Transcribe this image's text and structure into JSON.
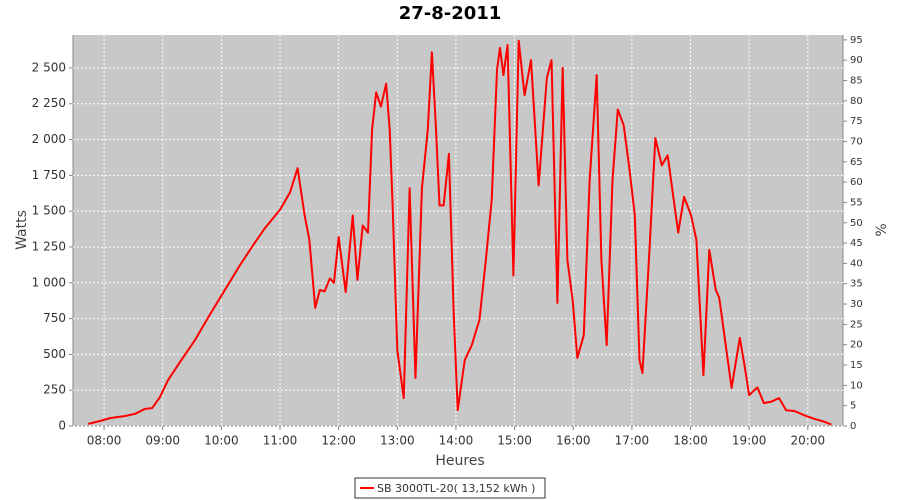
{
  "chart_data": {
    "type": "line",
    "title": "27-8-2011",
    "x_label": "Heures",
    "y_label": "Watts",
    "y2_label": "%",
    "x": [
      7.73,
      7.93,
      8.1,
      8.36,
      8.53,
      8.7,
      8.82,
      8.95,
      9.09,
      9.3,
      9.55,
      9.8,
      10.06,
      10.32,
      10.57,
      10.74,
      11.0,
      11.17,
      11.3,
      11.42,
      11.5,
      11.6,
      11.68,
      11.76,
      11.85,
      11.92,
      12.0,
      12.12,
      12.24,
      12.32,
      12.41,
      12.5,
      12.57,
      12.64,
      12.72,
      12.81,
      12.87,
      12.92,
      13.0,
      13.11,
      13.21,
      13.31,
      13.42,
      13.52,
      13.59,
      13.66,
      13.72,
      13.79,
      13.88,
      13.96,
      14.03,
      14.15,
      14.27,
      14.4,
      14.51,
      14.61,
      14.7,
      14.75,
      14.81,
      14.88,
      14.98,
      15.07,
      15.17,
      15.28,
      15.41,
      15.55,
      15.63,
      15.73,
      15.82,
      15.9,
      15.99,
      16.07,
      16.18,
      16.28,
      16.4,
      16.48,
      16.57,
      16.67,
      16.76,
      16.86,
      16.96,
      17.05,
      17.13,
      17.18,
      17.3,
      17.4,
      17.51,
      17.61,
      17.69,
      17.79,
      17.89,
      18.01,
      18.1,
      18.22,
      18.32,
      18.43,
      18.49,
      18.6,
      18.7,
      18.84,
      18.92,
      19.0,
      19.14,
      19.25,
      19.38,
      19.51,
      19.63,
      19.77,
      19.94,
      20.11,
      20.28,
      20.4
    ],
    "series": [
      {
        "name": "SB 3000TL-20( 13,152 kWh  )",
        "color": "#ff0000",
        "values": [
          15,
          35,
          55,
          70,
          85,
          120,
          125,
          200,
          320,
          450,
          600,
          775,
          950,
          1125,
          1280,
          1380,
          1510,
          1630,
          1800,
          1470,
          1300,
          825,
          950,
          940,
          1030,
          1000,
          1320,
          935,
          1470,
          1020,
          1400,
          1350,
          2070,
          2330,
          2230,
          2390,
          2070,
          1540,
          530,
          195,
          1660,
          335,
          1660,
          2070,
          2610,
          2070,
          1540,
          1540,
          1900,
          810,
          110,
          460,
          565,
          740,
          1160,
          1580,
          2485,
          2640,
          2450,
          2660,
          1050,
          2690,
          2310,
          2555,
          1680,
          2430,
          2555,
          860,
          2500,
          1160,
          880,
          475,
          635,
          1720,
          2450,
          1160,
          565,
          1720,
          2210,
          2100,
          1790,
          1470,
          460,
          370,
          1230,
          2010,
          1820,
          1890,
          1650,
          1350,
          1600,
          1470,
          1300,
          355,
          1230,
          950,
          895,
          565,
          265,
          615,
          425,
          215,
          270,
          160,
          170,
          195,
          110,
          105,
          75,
          50,
          30,
          10
        ]
      }
    ],
    "xlim": [
      7.47,
      20.6
    ],
    "xticks": [
      {
        "value": 8,
        "label": "08:00"
      },
      {
        "value": 9,
        "label": "09:00"
      },
      {
        "value": 10,
        "label": "10:00"
      },
      {
        "value": 11,
        "label": "11:00"
      },
      {
        "value": 12,
        "label": "12:00"
      },
      {
        "value": 13,
        "label": "13:00"
      },
      {
        "value": 14,
        "label": "14:00"
      },
      {
        "value": 15,
        "label": "15:00"
      },
      {
        "value": 16,
        "label": "16:00"
      },
      {
        "value": 17,
        "label": "17:00"
      },
      {
        "value": 18,
        "label": "18:00"
      },
      {
        "value": 19,
        "label": "19:00"
      },
      {
        "value": 20,
        "label": "20:00"
      }
    ],
    "ylim": [
      0,
      2730
    ],
    "yticks": [
      0,
      250,
      500,
      750,
      {
        "value": 1000,
        "label": "1 000"
      },
      {
        "value": 1250,
        "label": "1 250"
      },
      {
        "value": 1500,
        "label": "1 500"
      },
      {
        "value": 1750,
        "label": "1 750"
      },
      {
        "value": 2000,
        "label": "2 000"
      },
      {
        "value": 2250,
        "label": "2 250"
      },
      {
        "value": 2500,
        "label": "2 500"
      }
    ],
    "y2lim": [
      0,
      96.2
    ],
    "y2ticks": [
      0,
      5,
      10,
      15,
      20,
      25,
      30,
      35,
      40,
      45,
      50,
      55,
      60,
      65,
      70,
      75,
      80,
      85,
      90,
      95
    ],
    "grid": true,
    "legend": "bottom"
  }
}
